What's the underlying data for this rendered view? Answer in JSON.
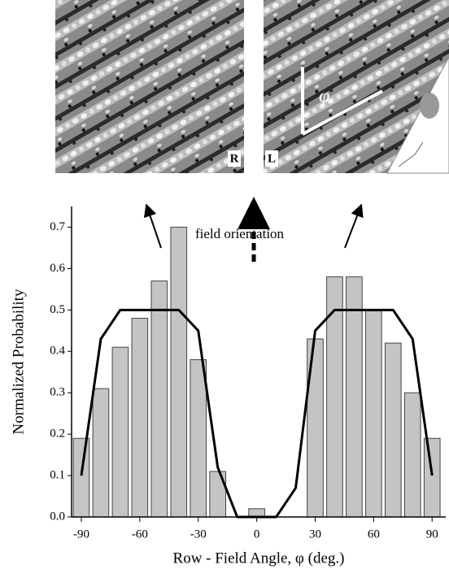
{
  "images": {
    "left_label": "R",
    "right_label": "L",
    "angle_label": "φ"
  },
  "chart_data": {
    "type": "bar",
    "y_label": "Normalized Probability",
    "x_label": "Row - Field Angle, φ (deg.)",
    "annotation": "field orientation",
    "xlim": [
      -95,
      97
    ],
    "ylim": [
      0,
      0.75
    ],
    "xticks": [
      -90,
      -60,
      -30,
      0,
      30,
      60,
      90
    ],
    "yticks": [
      {
        "value": 0,
        "label": "0.0"
      },
      0.1,
      0.2,
      0.3,
      0.4,
      0.5,
      0.6,
      0.7
    ],
    "series": [
      {
        "type": "bar",
        "color": "#c4c4c4",
        "x": [
          -90,
          -80,
          -70,
          -60,
          -50,
          -40,
          -30,
          -20,
          -10,
          0,
          10,
          20,
          30,
          40,
          50,
          60,
          70,
          80,
          90
        ],
        "values": [
          0.19,
          0.31,
          0.41,
          0.48,
          0.57,
          0.7,
          0.38,
          0.11,
          0,
          0.02,
          0,
          0,
          0.43,
          0.58,
          0.58,
          0.5,
          0.42,
          0.3,
          0.19
        ]
      },
      {
        "type": "line",
        "color": "#000000",
        "x": [
          -90,
          -80,
          -70,
          -60,
          -50,
          -40,
          -30,
          -20,
          -10,
          0,
          10,
          20,
          30,
          40,
          50,
          60,
          70,
          80,
          90
        ],
        "values": [
          0.1,
          0.43,
          0.5,
          0.5,
          0.5,
          0.5,
          0.45,
          0.12,
          0,
          0,
          0,
          0.07,
          0.45,
          0.5,
          0.5,
          0.5,
          0.5,
          0.43,
          0.1
        ]
      }
    ]
  }
}
